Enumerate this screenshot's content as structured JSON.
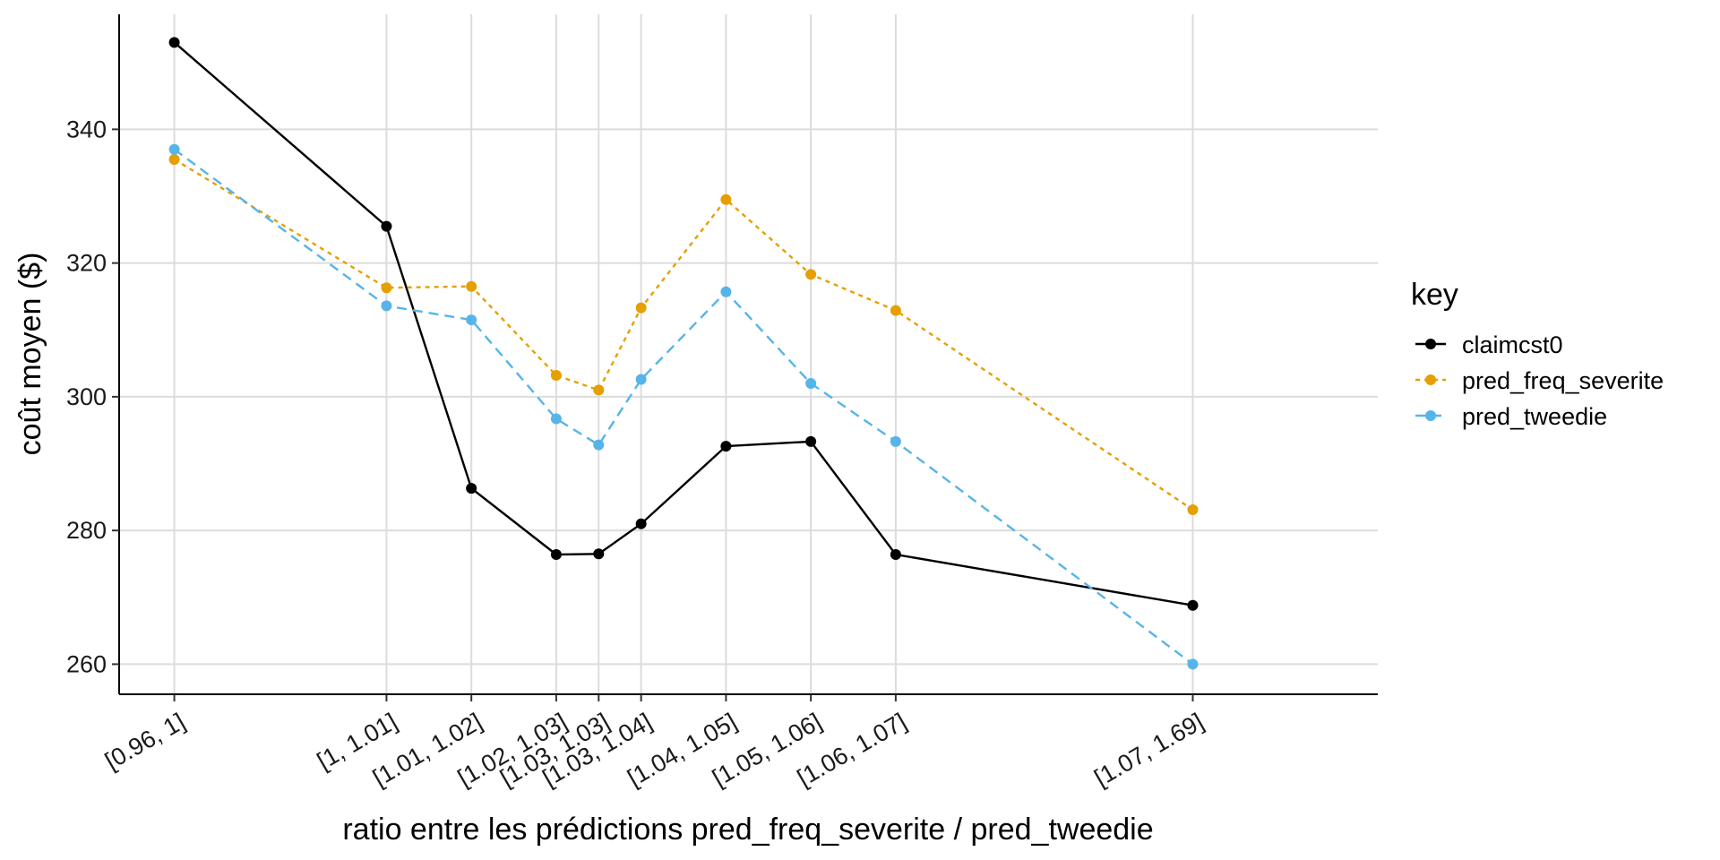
{
  "chart_data": {
    "type": "line",
    "xlabel": "ratio entre les prédictions pred_freq_severite / pred_tweedie",
    "ylabel": "coût moyen ($)",
    "categories": [
      "[0.96, 1]",
      "[1, 1.01]",
      "[1.01, 1.02]",
      "[1.02, 1.03]",
      "[1.03, 1.03]",
      "[1.03, 1.04]",
      "[1.04, 1.05]",
      "[1.05, 1.06]",
      "[1.06, 1.07]",
      "[1.07, 1.69]"
    ],
    "x": [
      0.98,
      1.005,
      1.015,
      1.025,
      1.03,
      1.035,
      1.045,
      1.055,
      1.065,
      1.1
    ],
    "xlim": [
      0.9735,
      1.1218
    ],
    "ylim": [
      255.5,
      357.2
    ],
    "yticks": [
      260,
      280,
      300,
      320,
      340
    ],
    "grid": true,
    "legend": {
      "title": "key",
      "position": "right"
    },
    "series": [
      {
        "name": "claimcst0",
        "color": "#000000",
        "dash": "solid",
        "values": [
          353.0,
          325.5,
          286.3,
          276.4,
          276.5,
          281.0,
          292.6,
          293.3,
          276.4,
          268.8
        ]
      },
      {
        "name": "pred_freq_severite",
        "color": "#E69F00",
        "dash": "dotted",
        "values": [
          335.5,
          316.3,
          316.5,
          303.2,
          301.0,
          313.3,
          329.5,
          318.3,
          312.9,
          283.1
        ]
      },
      {
        "name": "pred_tweedie",
        "color": "#56B4E9",
        "dash": "dashed",
        "values": [
          337.0,
          313.6,
          311.5,
          296.7,
          292.8,
          302.6,
          315.7,
          302.0,
          293.3,
          260.0
        ]
      }
    ]
  }
}
